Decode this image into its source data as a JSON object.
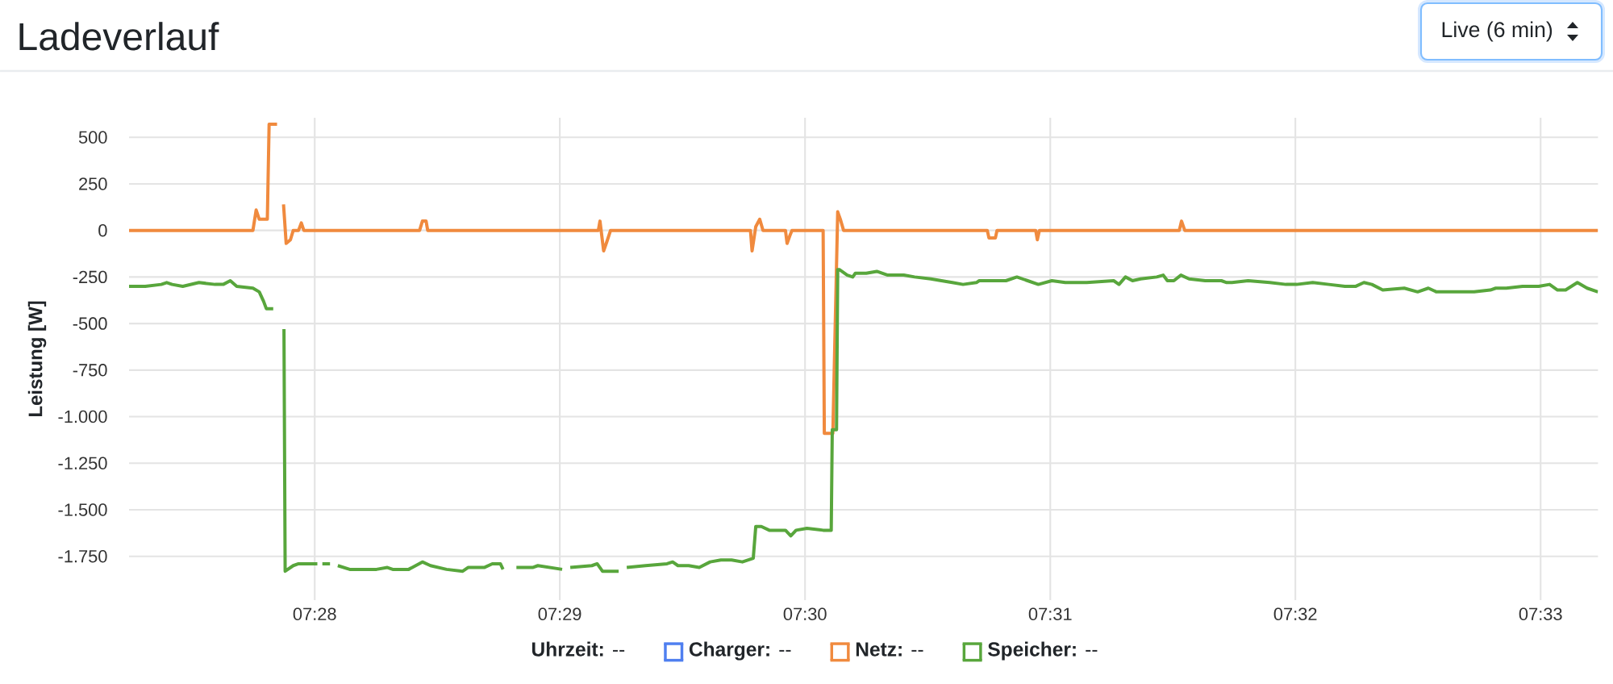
{
  "chart_data": {
    "type": "line",
    "title": "Ladeverlauf",
    "ylabel": "Leistung [W]",
    "legend_title": "**Uhrzeit:** --",
    "annotations": [
      "Live (6 min)"
    ],
    "xlim": [
      7.45405,
      7.5539
    ],
    "ylim": [
      -1985,
      605
    ],
    "xticks": [
      {
        "value": 7.46667,
        "label": "07:28"
      },
      {
        "value": 7.48333,
        "label": "07:29"
      },
      {
        "value": 7.5,
        "label": "07:30"
      },
      {
        "value": 7.51667,
        "label": "07:31"
      },
      {
        "value": 7.53333,
        "label": "07:32"
      },
      {
        "value": 7.55,
        "label": "07:33"
      }
    ],
    "yticks": [
      500,
      250,
      0,
      -250,
      -500,
      -750,
      {
        "value": -1000,
        "label": "-1.000"
      },
      {
        "value": -1250,
        "label": "-1.250"
      },
      {
        "value": -1500,
        "label": "-1.500"
      },
      {
        "value": -1750,
        "label": "-1.750"
      }
    ],
    "grid": true,
    "legend": "bottom",
    "series": [
      {
        "name": "**Charger:** --",
        "color": "#4f7ff0"
      },
      {
        "name": "**Netz:** --",
        "color": "#f08a3e",
        "x": [
          7.45405,
          7.46247,
          7.46269,
          7.4629,
          7.46345,
          7.46357,
          7.46411,
          7.46431,
          7.46455,
          7.46473,
          7.46502,
          7.46521,
          7.46557,
          7.46576,
          7.46593,
          7.4738,
          7.47399,
          7.47424,
          7.47435,
          7.48595,
          7.48606,
          7.48631,
          7.48653,
          7.48678,
          7.49629,
          7.4964,
          7.49665,
          7.49692,
          7.49714,
          7.49867,
          7.49878,
          7.49896,
          7.49911,
          7.50123,
          7.50131,
          7.50189,
          7.50222,
          7.5024,
          7.50262,
          7.51239,
          7.5125,
          7.51294,
          7.51305,
          7.51568,
          7.51579,
          7.51593,
          7.52544,
          7.52559,
          7.52581,
          7.5539
        ],
        "values": [
          0,
          0,
          110,
          60,
          60,
          570,
          570,
          null,
          140,
          -70,
          -50,
          0,
          0,
          40,
          0,
          0,
          50,
          50,
          0,
          0,
          50,
          -110,
          -60,
          0,
          0,
          -110,
          20,
          60,
          0,
          0,
          -70,
          -30,
          0,
          0,
          -1090,
          -1090,
          100,
          60,
          0,
          0,
          -40,
          -40,
          0,
          0,
          -50,
          0,
          0,
          50,
          0,
          0
        ]
      },
      {
        "name": "**Speicher:** --",
        "color": "#58a63c",
        "x": [
          7.45405,
          7.45515,
          7.45624,
          7.45661,
          7.45698,
          7.4577,
          7.4588,
          7.4599,
          7.46045,
          7.46093,
          7.46137,
          7.46247,
          7.4629,
          7.46319,
          7.46338,
          7.46385,
          7.4641,
          7.46458,
          7.46466,
          7.46521,
          7.46557,
          7.46685,
          7.46703,
          7.46719,
          7.46771,
          7.46795,
          7.46824,
          7.46905,
          7.47087,
          7.47161,
          7.47197,
          7.47306,
          7.47399,
          7.47454,
          7.47563,
          7.47673,
          7.47709,
          7.47819,
          7.47874,
          7.47929,
          7.47947,
          7.47995,
          7.48038,
          7.48148,
          7.48184,
          7.48349,
          7.48379,
          7.48404,
          7.48551,
          7.48587,
          7.48623,
          7.48733,
          7.48763,
          7.48788,
          7.48916,
          7.49062,
          7.491,
          7.49136,
          7.49209,
          7.49281,
          7.49355,
          7.49428,
          7.49501,
          7.49574,
          7.49648,
          7.49665,
          7.49703,
          7.49757,
          7.49867,
          7.49903,
          7.49939,
          7.50013,
          7.50123,
          7.50178,
          7.50185,
          7.50214,
          7.50222,
          7.50233,
          7.50287,
          7.50324,
          7.50342,
          7.50416,
          7.50488,
          7.50562,
          7.50671,
          7.50745,
          7.50855,
          7.50927,
          7.51001,
          7.51074,
          7.51165,
          7.51184,
          7.51256,
          7.51366,
          7.5144,
          7.51513,
          7.51586,
          7.51678,
          7.51769,
          7.51915,
          7.52098,
          7.52134,
          7.52178,
          7.52226,
          7.52281,
          7.52391,
          7.52435,
          7.52463,
          7.52507,
          7.52555,
          7.5261,
          7.5272,
          7.5283,
          7.52866,
          7.52902,
          7.53012,
          7.53159,
          7.53269,
          7.53341,
          7.53451,
          7.53561,
          7.5367,
          7.53744,
          7.53799,
          7.53853,
          7.53927,
          7.54073,
          7.54164,
          7.54237,
          7.54292,
          7.54402,
          7.54548,
          7.54658,
          7.54695,
          7.54767,
          7.54877,
          7.54987,
          7.55061,
          7.55115,
          7.5517,
          7.5525,
          7.55316,
          7.5539
        ],
        "values": [
          -300,
          -300,
          -290,
          -280,
          -290,
          -300,
          -280,
          -290,
          -290,
          -270,
          -300,
          -310,
          -330,
          -380,
          -420,
          -420,
          null,
          -530,
          -1830,
          -1800,
          -1790,
          -1790,
          null,
          -1790,
          -1790,
          null,
          -1800,
          -1820,
          -1820,
          -1810,
          -1820,
          -1820,
          -1780,
          -1800,
          -1820,
          -1830,
          -1810,
          -1810,
          -1790,
          -1790,
          -1820,
          null,
          -1810,
          -1810,
          -1800,
          -1820,
          null,
          -1810,
          -1800,
          -1790,
          -1830,
          -1830,
          null,
          -1810,
          -1800,
          -1790,
          -1780,
          -1800,
          -1800,
          -1810,
          -1780,
          -1770,
          -1770,
          -1780,
          -1760,
          -1590,
          -1590,
          -1610,
          -1610,
          -1640,
          -1610,
          -1600,
          -1610,
          -1610,
          -1070,
          -1070,
          -210,
          -210,
          -240,
          -250,
          -230,
          -230,
          -220,
          -240,
          -240,
          -250,
          -260,
          -270,
          -280,
          -290,
          -280,
          -270,
          -270,
          -270,
          -250,
          -270,
          -290,
          -270,
          -280,
          -280,
          -270,
          -290,
          -250,
          -270,
          -260,
          -250,
          -240,
          -270,
          -270,
          -240,
          -260,
          -270,
          -270,
          -280,
          -280,
          -270,
          -280,
          -290,
          -290,
          -280,
          -290,
          -300,
          -300,
          -280,
          -290,
          -320,
          -310,
          -330,
          -310,
          -330,
          -330,
          -330,
          -320,
          -310,
          -310,
          -300,
          -300,
          -290,
          -320,
          -320,
          -280,
          -310,
          -330
        ]
      }
    ]
  }
}
